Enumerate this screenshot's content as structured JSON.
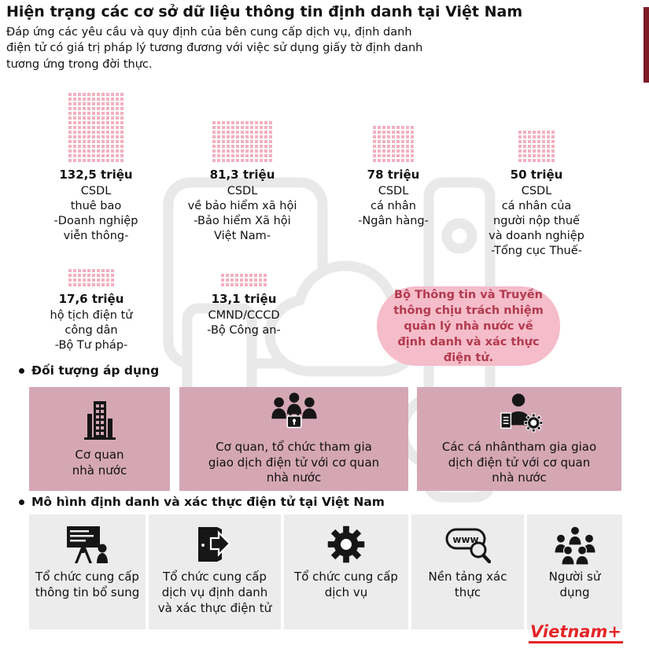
{
  "colors": {
    "accent": "#7d1b26",
    "dot": "#f2b0c0",
    "box": "#d5a7b4",
    "note-bg": "#f5bcc9",
    "note-fg": "#b23a4e",
    "cell": "#ececec",
    "brand": "#e52528",
    "ink": "#121212"
  },
  "header": {
    "title": "Hiện trạng các cơ sở dữ liệu thông tin định danh tại Việt Nam",
    "subtitle": "Đáp ứng các yêu cầu và quy định của bên cung cấp dịch vụ, định danh điện tử có giá trị pháp lý tương đương với việc sử dụng giấy tờ định danh tương ứng trong đời thực."
  },
  "databases": [
    {
      "value": "132,5 triệu",
      "label": "CSDL\nthuê bao\n-Doanh nghiệp\nviễn thông-",
      "waffle": {
        "rows": 15,
        "cols": 12
      }
    },
    {
      "value": "81,3 triệu",
      "label": "CSDL\nvề bảo hiểm xã hội\n-Bảo hiểm Xã hội\nViệt Nam-",
      "waffle": {
        "rows": 9,
        "cols": 13
      }
    },
    {
      "value": "78 triệu",
      "label": "CSDL\ncá nhân\n-Ngân hàng-",
      "waffle": {
        "rows": 8,
        "cols": 9
      }
    },
    {
      "value": "50 triệu",
      "label": "CSDL\ncá nhân của\nngười nộp thuế\nvà doanh nghiệp\n-Tổng cục Thuế-",
      "waffle": {
        "rows": 7,
        "cols": 8
      }
    },
    {
      "value": "17,6 triệu",
      "label": "hộ tịch điện tử\ncông dân\n-Bộ Tư pháp-",
      "waffle": {
        "rows": 4,
        "cols": 10
      }
    },
    {
      "value": "13,1 triệu",
      "label": "CMND/CCCD\n-Bộ Công an-",
      "waffle": {
        "rows": 3,
        "cols": 10
      }
    }
  ],
  "ministry_note": "Bộ Thông tin và Truyền thông chịu trách nhiệm quản lý nhà nước về định danh và xác thực điện tử.",
  "sections": {
    "subjects": "Đối tượng áp dụng",
    "model": "Mô hình định danh và xác thực điện tử tại Việt Nam"
  },
  "subjects": [
    {
      "icon": "government-building-icon",
      "label": "Cơ quan\nnhà nước"
    },
    {
      "icon": "organizations-group-lock-icon",
      "label": "Cơ quan, tổ chức tham gia\ngiao dịch điện tử với cơ quan\nnhà nước"
    },
    {
      "icon": "individual-document-gear-icon",
      "label": "Các cá nhântham gia giao\ndịch điện tử với cơ quan\nnhà nước"
    }
  ],
  "model_entities": [
    {
      "icon": "presentation-board-icon",
      "label": "Tổ chức cung cấp thông tin bổ sung"
    },
    {
      "icon": "door-exit-icon",
      "label": "Tổ chức cung cấp dịch vụ định danh và xác thực điện tử"
    },
    {
      "icon": "gear-icon",
      "label": "Tổ chức cung cấp dịch vụ"
    },
    {
      "icon": "www-search-icon",
      "label": "Nền tảng xác thực",
      "icon_text": "www"
    },
    {
      "icon": "users-group-icon",
      "label": "Người sử dụng"
    }
  ],
  "logo": {
    "text": "Vietnam+"
  }
}
